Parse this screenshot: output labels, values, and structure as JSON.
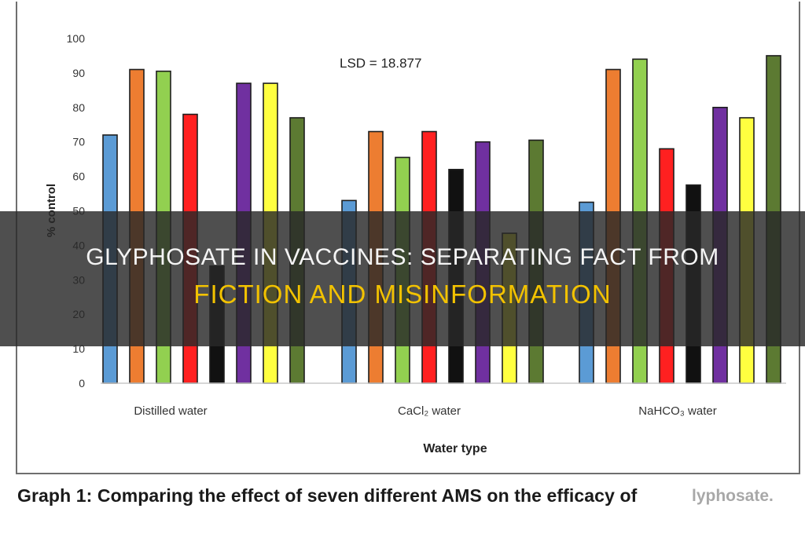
{
  "banner": {
    "line1": "GLYPHOSATE IN VACCINES: SEPARATING FACT FROM",
    "line2": "FICTION AND MISINFORMATION"
  },
  "caption": {
    "text": "Graph 1: Comparing the effect of seven different AMS on the efficacy of",
    "tail": "lyphosate."
  },
  "chart_data": {
    "type": "bar",
    "title": "",
    "xlabel": "Water type",
    "ylabel": "% control",
    "ylim": [
      0,
      100
    ],
    "yticks": [
      0,
      10,
      20,
      30,
      40,
      50,
      60,
      70,
      80,
      90,
      100
    ],
    "grid": false,
    "annotation": "LSD = 18.877",
    "categories": [
      "Distilled water",
      "CaCl₂ water",
      "NaHCO₃ water"
    ],
    "colors": [
      "#5b9bd5",
      "#ed7d31",
      "#92d050",
      "#ff2020",
      "#111111",
      "#7030a0",
      "#ffff40",
      "#5c7a32"
    ],
    "series": [
      {
        "values": [
          72,
          53,
          52.5
        ]
      },
      {
        "values": [
          91,
          73,
          91
        ]
      },
      {
        "values": [
          90.5,
          65.5,
          94
        ]
      },
      {
        "values": [
          78,
          73,
          68
        ]
      },
      {
        "values": [
          34,
          62,
          57.5
        ]
      },
      {
        "values": [
          87,
          70,
          80
        ]
      },
      {
        "values": [
          87,
          43.5,
          77
        ]
      },
      {
        "values": [
          77,
          70.5,
          95
        ]
      }
    ]
  }
}
